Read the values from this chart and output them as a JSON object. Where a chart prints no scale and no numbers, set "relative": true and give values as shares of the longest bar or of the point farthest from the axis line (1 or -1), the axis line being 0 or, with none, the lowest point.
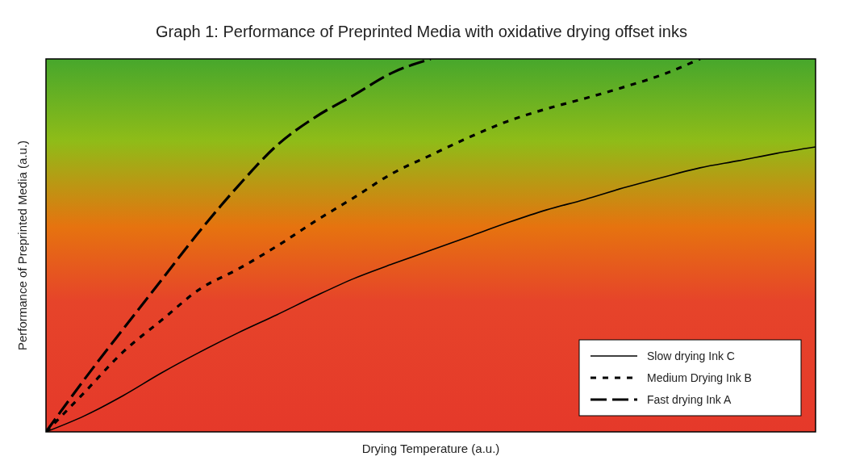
{
  "chart_data": {
    "type": "line",
    "title": "Graph 1: Performance of Preprinted Media with oxidative drying offset inks",
    "xlabel": "Drying Temperature (a.u.)",
    "ylabel": "Performance of Preprinted Media (a.u.)",
    "relative": true,
    "categories": [
      null,
      null,
      null,
      null,
      null,
      null,
      null,
      null,
      null,
      null,
      null,
      null,
      null,
      null,
      null,
      null,
      null,
      null,
      null,
      null,
      null
    ],
    "series": [
      {
        "name": "Slow drying Ink C",
        "color": "#000000",
        "line_style": "solid",
        "values": [
          0,
          0.043,
          0.097,
          0.158,
          0.214,
          0.266,
          0.314,
          0.364,
          0.411,
          0.45,
          0.487,
          0.524,
          0.561,
          0.595,
          0.623,
          0.654,
          0.682,
          0.708,
          0.727,
          0.747,
          0.764
        ]
      },
      {
        "name": "Medium Drying Ink B",
        "color": "#000000",
        "line_style": "dotted",
        "values": [
          0,
          0.106,
          0.214,
          0.299,
          0.383,
          0.437,
          0.498,
          0.565,
          0.628,
          0.693,
          0.742,
          0.79,
          0.833,
          0.866,
          0.894,
          0.924,
          0.957,
          1,
          null,
          null,
          null
        ]
      },
      {
        "name": "Fast drying Ink A",
        "color": "#000000",
        "line_style": "dashed",
        "values": [
          0,
          0.141,
          0.275,
          0.407,
          0.539,
          0.66,
          0.768,
          0.844,
          0.903,
          0.963,
          1,
          null,
          null,
          null,
          null,
          null,
          null,
          null,
          null,
          null,
          null
        ]
      }
    ],
    "legend": "bottom right",
    "marker": "none"
  }
}
